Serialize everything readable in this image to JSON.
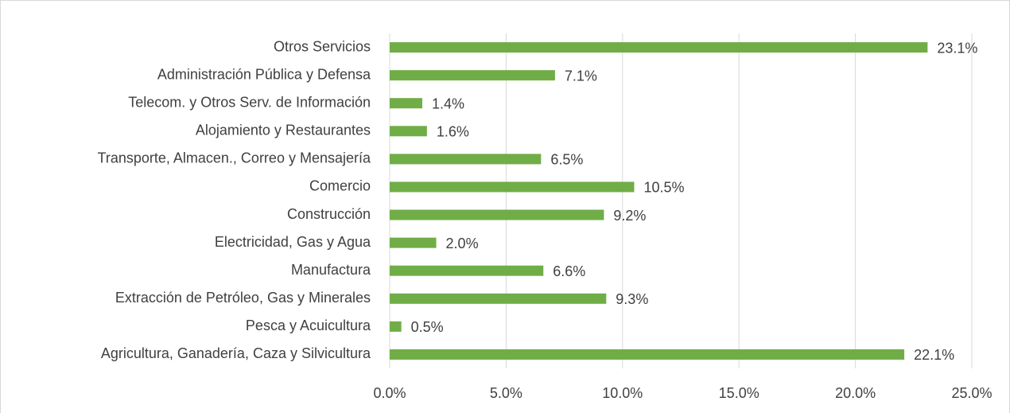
{
  "chart_data": {
    "type": "bar",
    "orientation": "horizontal",
    "categories": [
      "Otros Servicios",
      "Administración Pública y Defensa",
      "Telecom. y Otros Serv. de Información",
      "Alojamiento y Restaurantes",
      "Transporte, Almacen., Correo y Mensajería",
      "Comercio",
      "Construcción",
      "Electricidad, Gas y Agua",
      "Manufactura",
      "Extracción de Petróleo, Gas y Minerales",
      "Pesca y Acuicultura",
      "Agricultura, Ganadería, Caza y Silvicultura"
    ],
    "values": [
      23.1,
      7.1,
      1.4,
      1.6,
      6.5,
      10.5,
      9.2,
      2.0,
      6.6,
      9.3,
      0.5,
      22.1
    ],
    "value_labels": [
      "23.1%",
      "7.1%",
      "1.4%",
      "1.6%",
      "6.5%",
      "10.5%",
      "9.2%",
      "2.0%",
      "6.6%",
      "9.3%",
      "0.5%",
      "22.1%"
    ],
    "color": "#70ad47",
    "xlim": [
      0,
      25
    ],
    "xticks": [
      {
        "value": 0,
        "label": "0.0%"
      },
      {
        "value": 5,
        "label": "5.0%"
      },
      {
        "value": 10,
        "label": "10.0%"
      },
      {
        "value": 15,
        "label": "15.0%"
      },
      {
        "value": 20,
        "label": "20.0%"
      },
      {
        "value": 25,
        "label": "25.0%"
      }
    ],
    "grid": true
  }
}
